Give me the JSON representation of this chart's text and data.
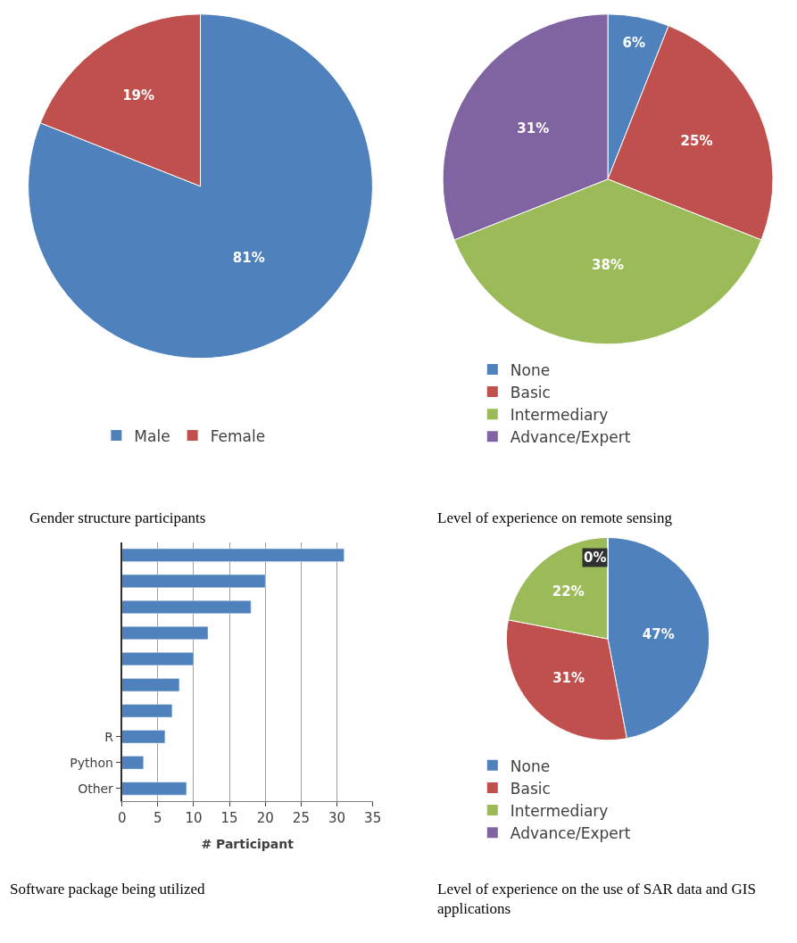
{
  "chart_data": [
    {
      "type": "pie",
      "title": "Gender structure participants",
      "categories": [
        "Male",
        "Female"
      ],
      "values": [
        81,
        19
      ],
      "colors": [
        "#4f81bd",
        "#c0504d"
      ],
      "value_labels": [
        "81%",
        "19%"
      ],
      "legend": "bottom"
    },
    {
      "type": "pie",
      "title": "Level of experience on remote sensing",
      "categories": [
        "None",
        "Basic",
        "Intermediary",
        "Advance/Expert"
      ],
      "values": [
        6,
        25,
        38,
        31
      ],
      "colors": [
        "#4f81bd",
        "#c0504d",
        "#9bbb59",
        "#8064a2"
      ],
      "value_labels": [
        "6%",
        "25%",
        "38%",
        "31%"
      ],
      "legend": "bottom"
    },
    {
      "type": "bar",
      "title": "Software package being utilized",
      "orientation": "horizontal",
      "xlabel": "# Participant",
      "categories": [
        null,
        null,
        null,
        null,
        null,
        null,
        null,
        "R",
        "Python",
        "Other"
      ],
      "values": [
        31,
        20,
        18,
        12,
        10,
        8,
        7,
        6,
        3,
        9
      ],
      "color": "#4f81bd",
      "xlim": [
        0,
        35
      ],
      "xticks": [
        0,
        5,
        10,
        15,
        20,
        25,
        30,
        35
      ],
      "grid": "x"
    },
    {
      "type": "pie",
      "title": "Level of experience on the use of SAR data and GIS applications",
      "categories": [
        "None",
        "Basic",
        "Intermediary",
        "Advance/Expert"
      ],
      "values": [
        47,
        31,
        22,
        0
      ],
      "colors": [
        "#4f81bd",
        "#c0504d",
        "#9bbb59",
        "#8064a2"
      ],
      "value_labels": [
        "47%",
        "31%",
        "22%",
        "0%"
      ],
      "legend": "bottom"
    }
  ]
}
